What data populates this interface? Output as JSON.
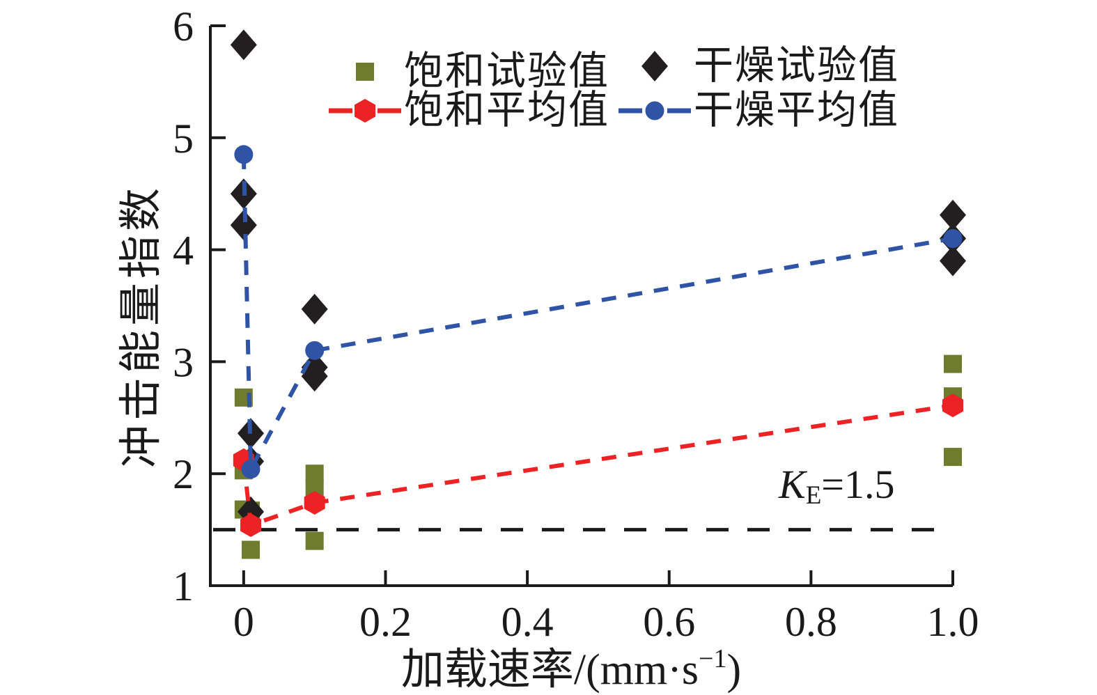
{
  "chart_data": {
    "type": "scatter",
    "title": "",
    "xlabel": "加载速率/(mm·s⁻¹)",
    "xlabel_parts": {
      "pre": "加载速率/(mm·s",
      "sup": "−1",
      "post": ")"
    },
    "ylabel": "冲击能量指数",
    "xlim": [
      -0.047,
      1.0
    ],
    "ylim": [
      1,
      6
    ],
    "x_ticks": [
      0,
      0.2,
      0.4,
      0.6,
      0.8,
      1.0
    ],
    "x_tick_labels": [
      "0",
      "0.2",
      "0.4",
      "0.6",
      "0.8",
      "1.0"
    ],
    "y_ticks": [
      1,
      2,
      3,
      4,
      5,
      6
    ],
    "y_tick_labels": [
      "1",
      "2",
      "3",
      "4",
      "5",
      "6"
    ],
    "grid": false,
    "legend_position": "top",
    "axis_color": "#1a1a1a",
    "reference_line": {
      "y": 1.5,
      "style": "dashed",
      "color": "#1a1a1a"
    },
    "annotation": {
      "symbol": "K",
      "subscript": "E",
      "equals_value": "=1.5",
      "text": "KE=1.5"
    },
    "series": [
      {
        "name": "饱和试验值",
        "marker": "square",
        "color": "#6f7c2e",
        "line": false,
        "points": [
          [
            0,
            2.68
          ],
          [
            0,
            2.03
          ],
          [
            0,
            1.68
          ],
          [
            0.01,
            1.67
          ],
          [
            0.01,
            1.32
          ],
          [
            0.1,
            2.0
          ],
          [
            0.1,
            1.87
          ],
          [
            0.1,
            1.4
          ],
          [
            1.0,
            2.98
          ],
          [
            1.0,
            2.69
          ],
          [
            1.0,
            2.15
          ]
        ]
      },
      {
        "name": "干燥试验值",
        "marker": "diamond",
        "color": "#231f20",
        "line": false,
        "points": [
          [
            0,
            5.83
          ],
          [
            0,
            4.5
          ],
          [
            0,
            4.22
          ],
          [
            0.01,
            2.36
          ],
          [
            0.01,
            2.11
          ],
          [
            0.01,
            1.66
          ],
          [
            0.1,
            3.47
          ],
          [
            0.1,
            2.95
          ],
          [
            0.1,
            2.87
          ],
          [
            1.0,
            4.31
          ],
          [
            1.0,
            4.1
          ],
          [
            1.0,
            3.9
          ]
        ]
      },
      {
        "name": "饱和平均值",
        "marker": "hexagon",
        "color": "#ed2224",
        "line": "dashed",
        "points": [
          [
            0,
            2.12
          ],
          [
            0.01,
            1.54
          ],
          [
            0.1,
            1.74
          ],
          [
            1.0,
            2.61
          ]
        ]
      },
      {
        "name": "干燥平均值",
        "marker": "circle",
        "color": "#3054a5",
        "line": "dashed",
        "points": [
          [
            0,
            4.85
          ],
          [
            0.01,
            2.04
          ],
          [
            0.1,
            3.1
          ],
          [
            1.0,
            4.1
          ]
        ]
      }
    ]
  }
}
